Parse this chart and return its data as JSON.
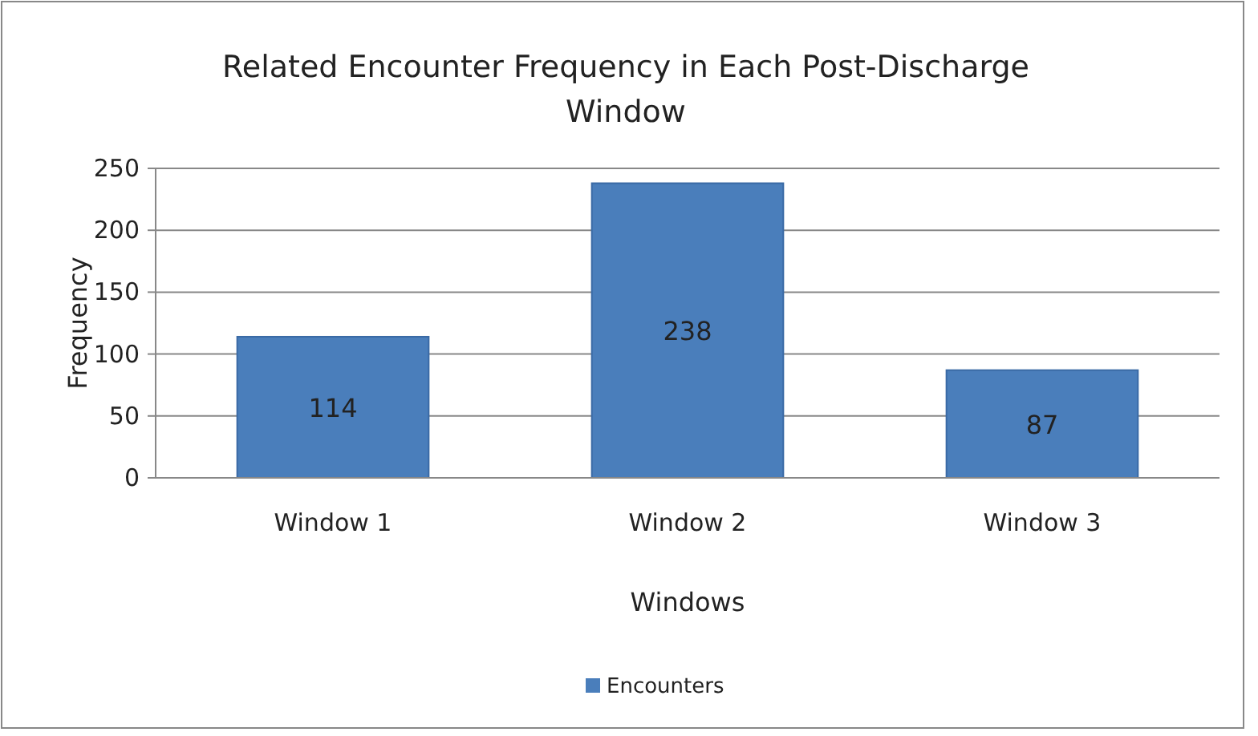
{
  "chart_data": {
    "type": "bar",
    "title": "Related Encounter Frequency in Each Post-Discharge Window",
    "xlabel": "Windows",
    "ylabel": "Frequency",
    "categories": [
      "Window 1",
      "Window 2",
      "Window 3"
    ],
    "series": [
      {
        "name": "Encounters",
        "color": "#4a7ebb",
        "values": [
          114,
          238,
          87
        ]
      }
    ],
    "ylim": [
      0,
      250
    ],
    "yticks": [
      0,
      50,
      100,
      150,
      200,
      250
    ],
    "grid": "y",
    "legend": "bottom",
    "data_labels": true
  }
}
